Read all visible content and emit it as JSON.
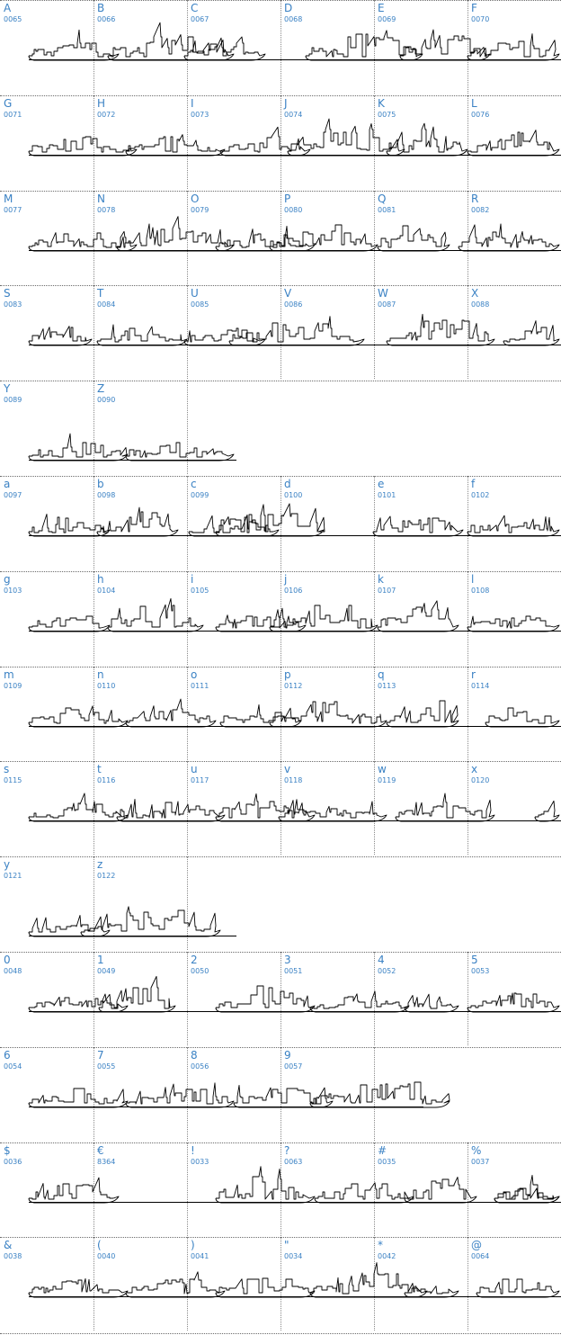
{
  "rows": [
    [
      {
        "char": "A",
        "code": "0065"
      },
      {
        "char": "B",
        "code": "0066"
      },
      {
        "char": "C",
        "code": "0067"
      },
      {
        "char": "D",
        "code": "0068"
      },
      {
        "char": "E",
        "code": "0069"
      },
      {
        "char": "F",
        "code": "0070"
      }
    ],
    [
      {
        "char": "G",
        "code": "0071"
      },
      {
        "char": "H",
        "code": "0072"
      },
      {
        "char": "I",
        "code": "0073"
      },
      {
        "char": "J",
        "code": "0074"
      },
      {
        "char": "K",
        "code": "0075"
      },
      {
        "char": "L",
        "code": "0076"
      }
    ],
    [
      {
        "char": "M",
        "code": "0077"
      },
      {
        "char": "N",
        "code": "0078"
      },
      {
        "char": "O",
        "code": "0079"
      },
      {
        "char": "P",
        "code": "0080"
      },
      {
        "char": "Q",
        "code": "0081"
      },
      {
        "char": "R",
        "code": "0082"
      }
    ],
    [
      {
        "char": "S",
        "code": "0083"
      },
      {
        "char": "T",
        "code": "0084"
      },
      {
        "char": "U",
        "code": "0085"
      },
      {
        "char": "V",
        "code": "0086"
      },
      {
        "char": "W",
        "code": "0087"
      },
      {
        "char": "X",
        "code": "0088"
      }
    ],
    [
      {
        "char": "Y",
        "code": "0089"
      },
      {
        "char": "Z",
        "code": "0090"
      }
    ],
    [
      {
        "char": "a",
        "code": "0097"
      },
      {
        "char": "b",
        "code": "0098"
      },
      {
        "char": "c",
        "code": "0099"
      },
      {
        "char": "d",
        "code": "0100"
      },
      {
        "char": "e",
        "code": "0101"
      },
      {
        "char": "f",
        "code": "0102"
      }
    ],
    [
      {
        "char": "g",
        "code": "0103"
      },
      {
        "char": "h",
        "code": "0104"
      },
      {
        "char": "i",
        "code": "0105"
      },
      {
        "char": "j",
        "code": "0106"
      },
      {
        "char": "k",
        "code": "0107"
      },
      {
        "char": "l",
        "code": "0108"
      }
    ],
    [
      {
        "char": "m",
        "code": "0109"
      },
      {
        "char": "n",
        "code": "0110"
      },
      {
        "char": "o",
        "code": "0111"
      },
      {
        "char": "p",
        "code": "0112"
      },
      {
        "char": "q",
        "code": "0113"
      },
      {
        "char": "r",
        "code": "0114"
      }
    ],
    [
      {
        "char": "s",
        "code": "0115"
      },
      {
        "char": "t",
        "code": "0116"
      },
      {
        "char": "u",
        "code": "0117"
      },
      {
        "char": "v",
        "code": "0118"
      },
      {
        "char": "w",
        "code": "0119"
      },
      {
        "char": "x",
        "code": "0120"
      }
    ],
    [
      {
        "char": "y",
        "code": "0121"
      },
      {
        "char": "z",
        "code": "0122"
      }
    ],
    [
      {
        "char": "0",
        "code": "0048"
      },
      {
        "char": "1",
        "code": "0049"
      },
      {
        "char": "2",
        "code": "0050"
      },
      {
        "char": "3",
        "code": "0051"
      },
      {
        "char": "4",
        "code": "0052"
      },
      {
        "char": "5",
        "code": "0053"
      }
    ],
    [
      {
        "char": "6",
        "code": "0054"
      },
      {
        "char": "7",
        "code": "0055"
      },
      {
        "char": "8",
        "code": "0056"
      },
      {
        "char": "9",
        "code": "0057"
      }
    ],
    [
      {
        "char": "$",
        "code": "0036"
      },
      {
        "char": "€",
        "code": "8364"
      },
      {
        "char": "!",
        "code": "0033"
      },
      {
        "char": "?",
        "code": "0063"
      },
      {
        "char": "#",
        "code": "0035"
      },
      {
        "char": "%",
        "code": "0037"
      }
    ],
    [
      {
        "char": "&",
        "code": "0038"
      },
      {
        "char": "(",
        "code": "0040"
      },
      {
        "char": ")",
        "code": "0041"
      },
      {
        "char": "\"",
        "code": "0034"
      },
      {
        "char": "*",
        "code": "0042"
      },
      {
        "char": "@",
        "code": "0064"
      }
    ]
  ],
  "colors": {
    "label": "#3b82c4",
    "grid": "#6b6b6b",
    "ink": "#000000",
    "background": "#ffffff"
  },
  "icons": {
    "glyph_preview": "warship-silhouette-icon"
  }
}
